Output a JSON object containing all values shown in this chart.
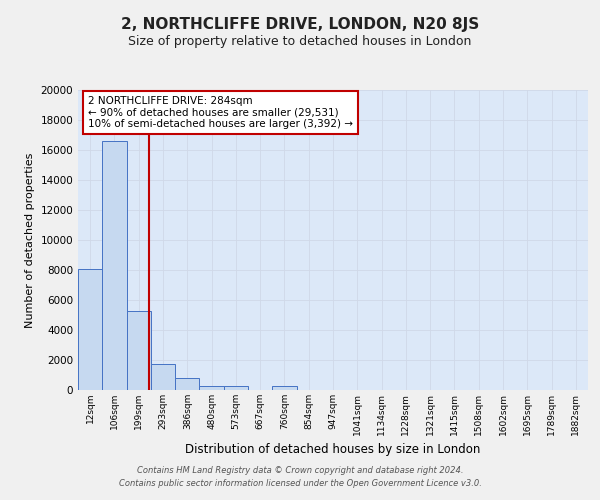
{
  "title": "2, NORTHCLIFFE DRIVE, LONDON, N20 8JS",
  "subtitle": "Size of property relative to detached houses in London",
  "xlabel": "Distribution of detached houses by size in London",
  "ylabel": "Number of detached properties",
  "bar_labels": [
    "12sqm",
    "106sqm",
    "199sqm",
    "293sqm",
    "386sqm",
    "480sqm",
    "573sqm",
    "667sqm",
    "760sqm",
    "854sqm",
    "947sqm",
    "1041sqm",
    "1134sqm",
    "1228sqm",
    "1321sqm",
    "1415sqm",
    "1508sqm",
    "1602sqm",
    "1695sqm",
    "1789sqm",
    "1882sqm"
  ],
  "bar_heights": [
    8100,
    16600,
    5300,
    1750,
    800,
    300,
    250,
    0,
    250,
    0,
    0,
    0,
    0,
    0,
    0,
    0,
    0,
    0,
    0,
    0,
    0
  ],
  "bar_color": "#c6d9f0",
  "bar_edge_color": "#4472c4",
  "vline_color": "#c00000",
  "ylim": [
    0,
    20000
  ],
  "yticks": [
    0,
    2000,
    4000,
    6000,
    8000,
    10000,
    12000,
    14000,
    16000,
    18000,
    20000
  ],
  "annotation_text_line1": "2 NORTHCLIFFE DRIVE: 284sqm",
  "annotation_text_line2": "← 90% of detached houses are smaller (29,531)",
  "annotation_text_line3": "10% of semi-detached houses are larger (3,392) →",
  "annotation_box_color": "#ffffff",
  "annotation_box_edge_color": "#c00000",
  "grid_color": "#d0d8e8",
  "background_color": "#dce8f8",
  "fig_background_color": "#f0f0f0",
  "footer_line1": "Contains HM Land Registry data © Crown copyright and database right 2024.",
  "footer_line2": "Contains public sector information licensed under the Open Government Licence v3.0.",
  "title_fontsize": 11,
  "subtitle_fontsize": 9,
  "ylabel_fontsize": 8,
  "xlabel_fontsize": 8.5,
  "tick_fontsize": 7.5,
  "xtick_fontsize": 6.5,
  "annotation_fontsize": 7.5,
  "footer_fontsize": 6
}
